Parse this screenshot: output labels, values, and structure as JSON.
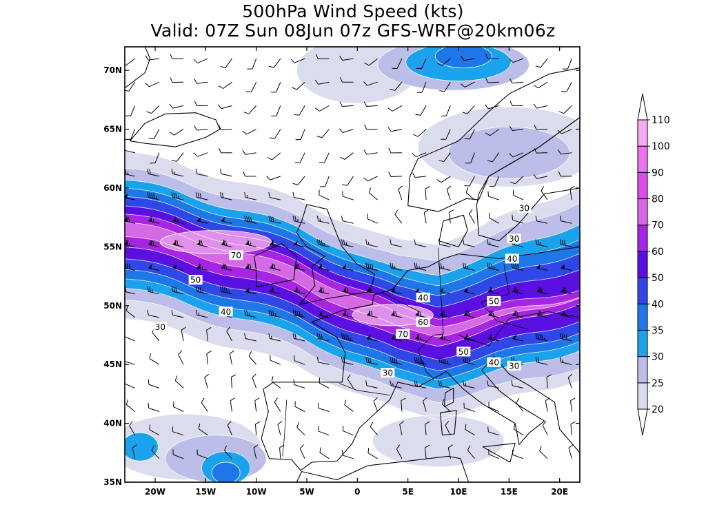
{
  "title": {
    "line1": "500hPa Wind Speed (kts)",
    "line2": "Valid: 07Z Sun 08Jun 07z GFS-WRF@20km06z"
  },
  "map": {
    "lon_range": [
      -23,
      22
    ],
    "lat_range": [
      35,
      72
    ],
    "lon_ticks": [
      {
        "value": -20,
        "label": "20W"
      },
      {
        "value": -15,
        "label": "15W"
      },
      {
        "value": -10,
        "label": "10W"
      },
      {
        "value": -5,
        "label": "5W"
      },
      {
        "value": 0,
        "label": "0"
      },
      {
        "value": 5,
        "label": "5E"
      },
      {
        "value": 10,
        "label": "10E"
      },
      {
        "value": 15,
        "label": "15E"
      },
      {
        "value": 20,
        "label": "20E"
      }
    ],
    "lat_ticks": [
      {
        "value": 70,
        "label": "70N"
      },
      {
        "value": 65,
        "label": "65N"
      },
      {
        "value": 60,
        "label": "60N"
      },
      {
        "value": 55,
        "label": "55N"
      },
      {
        "value": 50,
        "label": "50N"
      },
      {
        "value": 45,
        "label": "45N"
      },
      {
        "value": 40,
        "label": "40N"
      },
      {
        "value": 35,
        "label": "35N"
      }
    ],
    "jet_axis": [
      [
        -23,
        56.5
      ],
      [
        -18,
        55.5
      ],
      [
        -12,
        54
      ],
      [
        -6,
        52.5
      ],
      [
        -1,
        50.5
      ],
      [
        4,
        48.6
      ],
      [
        8,
        48
      ],
      [
        12,
        48.6
      ],
      [
        17,
        49.8
      ],
      [
        22,
        50.8
      ]
    ],
    "jet_bands": [
      {
        "level": 20,
        "color": "#dcdcef",
        "north": 6.6,
        "south": 7.6,
        "end_north": 9.5,
        "end_south": 7.0
      },
      {
        "level": 25,
        "color": "#bcbde9",
        "north": 5.2,
        "south": 6.0,
        "end_north": 8.2,
        "end_south": 6.0
      },
      {
        "level": 30,
        "color": "#1aa3ec",
        "north": 4.2,
        "south": 5.0,
        "end_north": 6.3,
        "end_south": 4.5
      },
      {
        "level": 35,
        "color": "#1e77e8",
        "north": 3.5,
        "south": 4.2,
        "end_north": 5.0,
        "end_south": 3.7
      },
      {
        "level": 40,
        "color": "#2e47e6",
        "north": 2.8,
        "south": 3.4,
        "end_north": 3.8,
        "end_south": 3.0
      },
      {
        "level": 50,
        "color": "#5a10e1",
        "north": 2.0,
        "south": 2.5,
        "end_north": 2.4,
        "end_south": 2.0
      },
      {
        "level": 60,
        "color": "#a525e2",
        "north": 1.3,
        "south": 1.5,
        "end_north": 0.6,
        "end_south": 0.5
      },
      {
        "level": 70,
        "color": "#d66ae6",
        "north": 0.6,
        "south": 0.6,
        "end_north": 0.0,
        "end_south": 0.0
      }
    ],
    "blobs": [
      {
        "lon": 0,
        "lat": 70,
        "rx": 6.0,
        "ry": 2.8,
        "level": 20
      },
      {
        "lon": 9.5,
        "lat": 70.5,
        "rx": 7.5,
        "ry": 2.2,
        "level": 25
      },
      {
        "lon": 10,
        "lat": 70.7,
        "rx": 5.2,
        "ry": 1.6,
        "level": 30
      },
      {
        "lon": 10.5,
        "lat": 71.2,
        "rx": 2.8,
        "ry": 1.0,
        "level": 35
      },
      {
        "lon": 15,
        "lat": 63.5,
        "rx": 9.0,
        "ry": 3.4,
        "level": 20
      },
      {
        "lon": 15,
        "lat": 63,
        "rx": 6.0,
        "ry": 2.2,
        "level": 25
      },
      {
        "lon": -17,
        "lat": 38,
        "rx": 7.5,
        "ry": 2.8,
        "level": 20
      },
      {
        "lon": -14,
        "lat": 37,
        "rx": 5.0,
        "ry": 2.0,
        "level": 25
      },
      {
        "lon": -13,
        "lat": 36.2,
        "rx": 2.4,
        "ry": 1.4,
        "level": 30
      },
      {
        "lon": -13,
        "lat": 35.8,
        "rx": 1.4,
        "ry": 0.9,
        "level": 35
      },
      {
        "lon": -21.5,
        "lat": 38,
        "rx": 1.8,
        "ry": 1.2,
        "level": 30
      },
      {
        "lon": 8,
        "lat": 38.5,
        "rx": 6.5,
        "ry": 2.2,
        "level": 20
      }
    ],
    "contour_labels": [
      {
        "lon": -12,
        "lat": 54.3,
        "text": "70"
      },
      {
        "lon": -16,
        "lat": 52.2,
        "text": "50"
      },
      {
        "lon": -13,
        "lat": 49.5,
        "text": "40"
      },
      {
        "lon": -19.5,
        "lat": 48.2,
        "text": "30"
      },
      {
        "lon": 6.5,
        "lat": 48.6,
        "text": "60"
      },
      {
        "lon": 4.5,
        "lat": 47.6,
        "text": "70"
      },
      {
        "lon": 6.5,
        "lat": 50.7,
        "text": "40"
      },
      {
        "lon": 13.5,
        "lat": 50.4,
        "text": "50"
      },
      {
        "lon": 10.5,
        "lat": 46.1,
        "text": "50"
      },
      {
        "lon": 13.5,
        "lat": 45.2,
        "text": "40"
      },
      {
        "lon": 15.5,
        "lat": 44.9,
        "text": "30"
      },
      {
        "lon": 3,
        "lat": 44.3,
        "text": "30"
      },
      {
        "lon": 16.5,
        "lat": 58.3,
        "text": "30"
      },
      {
        "lon": 15.5,
        "lat": 55.7,
        "text": "30"
      },
      {
        "lon": 15.3,
        "lat": 54,
        "text": "40"
      }
    ],
    "land": [
      {
        "name": "iceland",
        "points": [
          [
            -22.5,
            64
          ],
          [
            -21,
            65.5
          ],
          [
            -19,
            66.3
          ],
          [
            -16,
            66.4
          ],
          [
            -14,
            65.8
          ],
          [
            -13.6,
            65
          ],
          [
            -15,
            64.3
          ],
          [
            -18,
            63.5
          ],
          [
            -21,
            63.8
          ]
        ]
      },
      {
        "name": "greenland",
        "points": [
          [
            -23,
            68.5
          ],
          [
            -21,
            69.8
          ],
          [
            -20.5,
            71
          ],
          [
            -21,
            72
          ],
          [
            -23,
            72
          ]
        ]
      },
      {
        "name": "great-britain",
        "points": [
          [
            -5.7,
            50.1
          ],
          [
            -3,
            50.6
          ],
          [
            1.3,
            51.2
          ],
          [
            1.7,
            52.7
          ],
          [
            0,
            53.5
          ],
          [
            -1.5,
            55
          ],
          [
            -2,
            56
          ],
          [
            -3,
            58.2
          ],
          [
            -5,
            58.6
          ],
          [
            -5.5,
            57.2
          ],
          [
            -6,
            56.2
          ],
          [
            -5,
            55
          ],
          [
            -3.2,
            54.2
          ],
          [
            -4.5,
            53.3
          ],
          [
            -4.2,
            51.7
          ]
        ]
      },
      {
        "name": "ireland",
        "points": [
          [
            -10,
            51.6
          ],
          [
            -6.3,
            52.2
          ],
          [
            -6,
            54.2
          ],
          [
            -7.5,
            55.3
          ],
          [
            -10.2,
            54.2
          ],
          [
            -10,
            53
          ]
        ]
      },
      {
        "name": "norway",
        "points": [
          [
            5,
            58.5
          ],
          [
            5.2,
            61
          ],
          [
            6,
            62.5
          ],
          [
            10,
            64
          ],
          [
            13,
            66.5
          ],
          [
            15,
            68
          ],
          [
            19,
            69.7
          ],
          [
            22,
            70.2
          ],
          [
            22,
            66
          ],
          [
            18,
            63.5
          ],
          [
            13,
            61
          ],
          [
            12,
            59
          ],
          [
            10.8,
            59.1
          ],
          [
            8,
            58
          ]
        ]
      },
      {
        "name": "sweden",
        "points": [
          [
            12,
            56
          ],
          [
            11.8,
            58.5
          ],
          [
            12,
            59.5
          ],
          [
            13,
            61
          ],
          [
            18,
            63.5
          ],
          [
            22,
            66
          ],
          [
            22,
            60
          ],
          [
            18.5,
            59.5
          ],
          [
            16,
            57
          ],
          [
            14,
            55.5
          ]
        ]
      },
      {
        "name": "denmark",
        "points": [
          [
            8.1,
            55.5
          ],
          [
            8.5,
            57.2
          ],
          [
            10.5,
            57.7
          ],
          [
            10.9,
            56.4
          ],
          [
            10,
            55
          ]
        ]
      },
      {
        "name": "continent",
        "points": [
          [
            22,
            55
          ],
          [
            14,
            54
          ],
          [
            10,
            54.4
          ],
          [
            8.5,
            54
          ],
          [
            7,
            53.3
          ],
          [
            5,
            53
          ],
          [
            3.5,
            51.4
          ],
          [
            1.6,
            50.9
          ],
          [
            1.5,
            50.1
          ],
          [
            -1.5,
            49.6
          ],
          [
            -4.5,
            48.6
          ],
          [
            -2,
            47.3
          ],
          [
            -1.2,
            46
          ],
          [
            -1.5,
            43.5
          ],
          [
            -8.3,
            43.5
          ],
          [
            -9.3,
            42.9
          ],
          [
            -8.8,
            41
          ],
          [
            -9.5,
            38.7
          ],
          [
            -8.7,
            37
          ],
          [
            -6.5,
            36.9
          ],
          [
            -5.6,
            36
          ],
          [
            -4.5,
            36.7
          ],
          [
            -2,
            36.8
          ],
          [
            -0.5,
            38.3
          ],
          [
            0.2,
            39.6
          ],
          [
            3.2,
            42
          ],
          [
            4,
            43.5
          ],
          [
            6,
            43.1
          ],
          [
            7.5,
            43.8
          ],
          [
            8.8,
            44.4
          ],
          [
            10.5,
            42.9
          ],
          [
            12.3,
            41.7
          ],
          [
            15.6,
            40
          ],
          [
            16,
            38.2
          ],
          [
            17,
            39.2
          ],
          [
            18.5,
            40.2
          ],
          [
            16,
            41.5
          ],
          [
            14,
            42.8
          ],
          [
            12.3,
            44.5
          ],
          [
            13.5,
            45.7
          ],
          [
            15,
            44.2
          ],
          [
            17,
            43.2
          ],
          [
            19.5,
            41.8
          ],
          [
            20,
            39.5
          ],
          [
            22,
            37.5
          ],
          [
            22,
            35
          ],
          [
            23,
            35
          ],
          [
            23,
            55
          ]
        ]
      },
      {
        "name": "corsica",
        "points": [
          [
            8.6,
            41.4
          ],
          [
            9.5,
            41.8
          ],
          [
            9.5,
            43
          ],
          [
            8.7,
            42.6
          ]
        ]
      },
      {
        "name": "sardinia",
        "points": [
          [
            8.4,
            39
          ],
          [
            9.6,
            39.1
          ],
          [
            9.8,
            41.1
          ],
          [
            8.2,
            40.9
          ]
        ]
      },
      {
        "name": "sicily",
        "points": [
          [
            12.4,
            38
          ],
          [
            15.6,
            38.3
          ],
          [
            15.1,
            36.7
          ]
        ]
      },
      {
        "name": "north-africa",
        "points": [
          [
            -6,
            35
          ],
          [
            -5.5,
            35.9
          ],
          [
            -2,
            35.2
          ],
          [
            1,
            36.4
          ],
          [
            5,
            36.8
          ],
          [
            9,
            37.2
          ],
          [
            10.2,
            37
          ],
          [
            11,
            35
          ],
          [
            11,
            35
          ]
        ]
      }
    ],
    "border_lines": [
      [
        [
          8,
          54.9
        ],
        [
          8.5,
          47.6
        ],
        [
          7.5,
          47.5
        ],
        [
          6,
          46.2
        ],
        [
          6.8,
          44.4
        ],
        [
          7.5,
          43.8
        ]
      ],
      [
        [
          -1.8,
          43.4
        ],
        [
          0,
          42.8
        ],
        [
          3.2,
          42.4
        ]
      ],
      [
        [
          6.1,
          49.5
        ],
        [
          2.5,
          51.1
        ]
      ],
      [
        [
          -7,
          42
        ],
        [
          -7.2,
          39
        ],
        [
          -7.4,
          37.2
        ]
      ],
      [
        [
          10,
          47.5
        ],
        [
          13,
          46.6
        ],
        [
          15,
          48.9
        ],
        [
          18.8,
          49.5
        ],
        [
          22,
          49
        ]
      ],
      [
        [
          14.5,
          53.5
        ],
        [
          15,
          51
        ],
        [
          12.2,
          50.3
        ],
        [
          13.8,
          48.7
        ],
        [
          16.9,
          48
        ]
      ]
    ],
    "barb_spacing_deg": [
      2.4,
      2.0
    ]
  },
  "colorbar": {
    "levels": [
      {
        "label": "20",
        "color": "#dcdcef"
      },
      {
        "label": "25",
        "color": "#bcbde9"
      },
      {
        "label": "30",
        "color": "#1aa3ec"
      },
      {
        "label": "35",
        "color": "#1e77e8"
      },
      {
        "label": "40",
        "color": "#2e47e6"
      },
      {
        "label": "50",
        "color": "#5a10e1"
      },
      {
        "label": "60",
        "color": "#a525e2"
      },
      {
        "label": "70",
        "color": "#d66ae6"
      },
      {
        "label": "80",
        "color": "#e04ae8"
      },
      {
        "label": "90",
        "color": "#f070f0"
      },
      {
        "label": "100",
        "color": "#f7aaf5"
      },
      {
        "label": "110",
        "color": "#fbd0fa"
      }
    ],
    "low_color": "#ffffff",
    "high_color": "#ffffff"
  }
}
